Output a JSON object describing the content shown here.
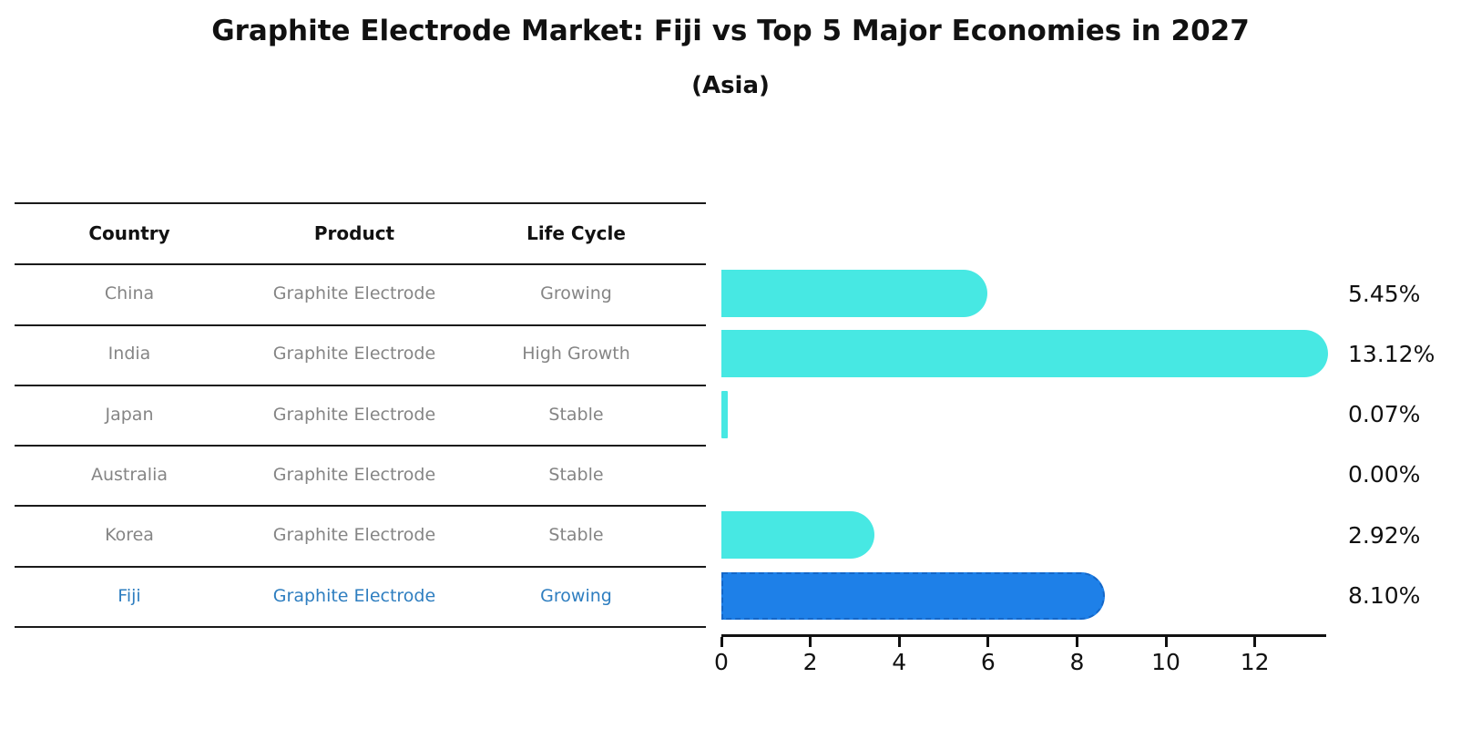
{
  "title": "Graphite Electrode Market: Fiji vs Top 5 Major Economies in 2027",
  "subtitle": "(Asia)",
  "table": {
    "columns": [
      "Country",
      "Product",
      "Life Cycle"
    ],
    "rows": [
      {
        "country": "China",
        "product": "Graphite Electrode",
        "life_cycle": "Growing",
        "share_label": "5.45%",
        "highlight": false
      },
      {
        "country": "India",
        "product": "Graphite Electrode",
        "life_cycle": "High Growth",
        "share_label": "13.12%",
        "highlight": false
      },
      {
        "country": "Japan",
        "product": "Graphite Electrode",
        "life_cycle": "Stable",
        "share_label": "0.07%",
        "highlight": false
      },
      {
        "country": "Australia",
        "product": "Graphite Electrode",
        "life_cycle": "Stable",
        "share_label": "0.00%",
        "highlight": false
      },
      {
        "country": "Korea",
        "product": "Graphite Electrode",
        "life_cycle": "Stable",
        "share_label": "2.92%",
        "highlight": false
      },
      {
        "country": "Fiji",
        "product": "Graphite Electrode",
        "life_cycle": "Growing",
        "share_label": "8.10%",
        "highlight": true
      }
    ]
  },
  "chart_data": {
    "type": "bar",
    "orientation": "horizontal",
    "title": "Graphite Electrode Market: Fiji vs Top 5 Major Economies in 2027",
    "subtitle": "(Asia)",
    "categories": [
      "China",
      "India",
      "Japan",
      "Australia",
      "Korea",
      "Fiji"
    ],
    "values": [
      5.45,
      13.12,
      0.07,
      0.0,
      2.92,
      8.1
    ],
    "value_labels": [
      "5.45%",
      "13.12%",
      "0.07%",
      "0.00%",
      "2.92%",
      "8.10%"
    ],
    "xlabel": "",
    "ylabel": "",
    "xlim": [
      0,
      13.6
    ],
    "x_ticks": [
      0,
      2,
      4,
      6,
      8,
      10,
      12
    ],
    "x_tick_labels": [
      "0",
      "2",
      "4",
      "6",
      "8",
      "10",
      "12"
    ],
    "grid": false,
    "legend": "none",
    "highlight_index": 5,
    "colors": {
      "default_bar": "#47E8E3",
      "highlight_bar": "#1E80E8",
      "highlight_border": "#1467C8",
      "highlight_text": "#2E7EC0",
      "header_text": "#111111",
      "row_text": "#858585",
      "axis": "#111111"
    }
  }
}
